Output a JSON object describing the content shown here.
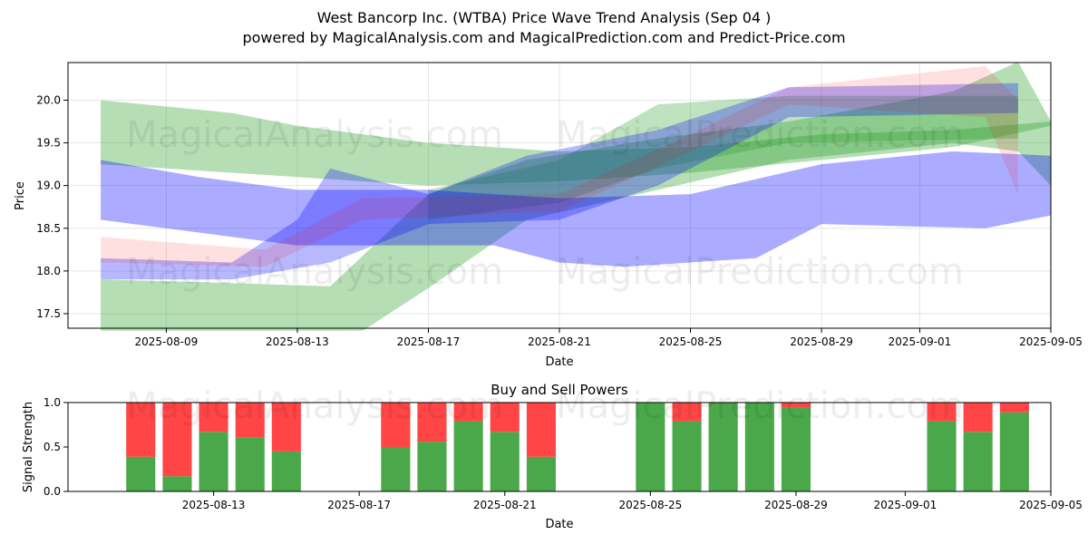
{
  "title_line1": "West Bancorp Inc. (WTBA) Price Wave Trend Analysis (Sep 04 )",
  "title_line2": "powered by MagicalAnalysis.com and MagicalPrediction.com and Predict-Price.com",
  "watermark_left": "MagicalAnalysis.com",
  "watermark_right": "MagicalPrediction.com",
  "colors": {
    "green_band": "#2ca02c",
    "blue_band": "#0000ff",
    "red_band": "#ff0000",
    "buy_bar": "#4aa84a",
    "sell_bar": "#ff4545"
  },
  "chart_data": [
    {
      "type": "area",
      "title": "",
      "xlabel": "Date",
      "ylabel": "Price",
      "x_range": [
        "2025-08-06",
        "2025-09-05"
      ],
      "ylim": [
        17.33,
        20.44
      ],
      "x_ticks": [
        "2025-08-09",
        "2025-08-13",
        "2025-08-17",
        "2025-08-21",
        "2025-08-25",
        "2025-08-29",
        "2025-09-01",
        "2025-09-05"
      ],
      "y_ticks": [
        17.5,
        18.0,
        18.5,
        19.0,
        19.5,
        20.0
      ],
      "grid": true,
      "bands": [
        {
          "color": "green",
          "opacity": 0.35,
          "upper": [
            [
              "2025-08-07",
              20.0
            ],
            [
              "2025-08-11",
              19.85
            ],
            [
              "2025-08-13",
              19.7
            ],
            [
              "2025-08-17",
              19.5
            ],
            [
              "2025-08-21",
              19.4
            ],
            [
              "2025-08-25",
              19.45
            ],
            [
              "2025-08-29",
              19.6
            ],
            [
              "2025-09-02",
              19.65
            ],
            [
              "2025-09-05",
              19.75
            ]
          ],
          "lower": [
            [
              "2025-09-05",
              19.7
            ],
            [
              "2025-09-02",
              19.45
            ],
            [
              "2025-08-29",
              19.3
            ],
            [
              "2025-08-25",
              19.15
            ],
            [
              "2025-08-21",
              19.05
            ],
            [
              "2025-08-17",
              19.0
            ],
            [
              "2025-08-13",
              19.1
            ],
            [
              "2025-08-11",
              19.15
            ],
            [
              "2025-08-07",
              19.25
            ]
          ]
        },
        {
          "color": "green",
          "opacity": 0.35,
          "upper": [
            [
              "2025-08-07",
              17.9
            ],
            [
              "2025-08-10",
              17.87
            ],
            [
              "2025-08-14",
              17.82
            ],
            [
              "2025-08-17",
              18.9
            ],
            [
              "2025-08-20",
              19.3
            ],
            [
              "2025-08-24",
              19.55
            ],
            [
              "2025-08-28",
              19.75
            ],
            [
              "2025-09-02",
              20.1
            ],
            [
              "2025-09-04",
              20.45
            ],
            [
              "2025-09-05",
              19.75
            ]
          ],
          "lower": [
            [
              "2025-09-05",
              19.0
            ],
            [
              "2025-09-04",
              19.4
            ],
            [
              "2025-09-02",
              19.5
            ],
            [
              "2025-08-28",
              19.3
            ],
            [
              "2025-08-24",
              18.95
            ],
            [
              "2025-08-20",
              18.6
            ],
            [
              "2025-08-17",
              17.8
            ],
            [
              "2025-08-15",
              17.3
            ],
            [
              "2025-08-07",
              17.3
            ]
          ]
        },
        {
          "color": "green",
          "opacity": 0.3,
          "upper": [
            [
              "2025-08-17",
              18.95
            ],
            [
              "2025-08-21",
              19.3
            ],
            [
              "2025-08-24",
              19.95
            ],
            [
              "2025-08-28",
              20.05
            ],
            [
              "2025-09-04",
              20.05
            ]
          ],
          "lower": [
            [
              "2025-09-04",
              19.55
            ],
            [
              "2025-08-28",
              19.5
            ],
            [
              "2025-08-24",
              19.2
            ],
            [
              "2025-08-21",
              18.8
            ],
            [
              "2025-08-17",
              18.6
            ]
          ]
        },
        {
          "color": "blue",
          "opacity": 0.33,
          "upper": [
            [
              "2025-08-07",
              19.3
            ],
            [
              "2025-08-10",
              19.1
            ],
            [
              "2025-08-13",
              18.95
            ],
            [
              "2025-08-17",
              18.95
            ],
            [
              "2025-08-21",
              18.85
            ],
            [
              "2025-08-25",
              18.9
            ],
            [
              "2025-08-29",
              19.25
            ],
            [
              "2025-09-02",
              19.4
            ],
            [
              "2025-09-05",
              19.35
            ]
          ],
          "lower": [
            [
              "2025-09-05",
              18.65
            ],
            [
              "2025-09-03",
              18.5
            ],
            [
              "2025-08-29",
              18.55
            ],
            [
              "2025-08-27",
              18.15
            ],
            [
              "2025-08-23",
              18.05
            ],
            [
              "2025-08-21",
              18.1
            ],
            [
              "2025-08-19",
              18.3
            ],
            [
              "2025-08-15",
              18.3
            ],
            [
              "2025-08-13",
              18.3
            ],
            [
              "2025-08-10",
              18.45
            ],
            [
              "2025-08-07",
              18.6
            ]
          ]
        },
        {
          "color": "blue",
          "opacity": 0.28,
          "upper": [
            [
              "2025-08-07",
              18.15
            ],
            [
              "2025-08-11",
              18.1
            ],
            [
              "2025-08-13",
              18.6
            ],
            [
              "2025-08-14",
              19.2
            ],
            [
              "2025-08-17",
              18.9
            ],
            [
              "2025-08-20",
              19.35
            ],
            [
              "2025-08-24",
              19.65
            ],
            [
              "2025-08-28",
              20.15
            ],
            [
              "2025-09-04",
              20.2
            ]
          ],
          "lower": [
            [
              "2025-09-04",
              19.85
            ],
            [
              "2025-08-28",
              19.8
            ],
            [
              "2025-08-24",
              19.0
            ],
            [
              "2025-08-21",
              18.6
            ],
            [
              "2025-08-17",
              18.55
            ],
            [
              "2025-08-14",
              18.1
            ],
            [
              "2025-08-11",
              17.9
            ],
            [
              "2025-08-07",
              17.9
            ]
          ]
        },
        {
          "color": "red",
          "opacity": 0.12,
          "upper": [
            [
              "2025-08-07",
              18.4
            ],
            [
              "2025-08-12",
              18.25
            ],
            [
              "2025-08-15",
              18.85
            ],
            [
              "2025-08-21",
              18.9
            ],
            [
              "2025-08-25",
              19.6
            ],
            [
              "2025-08-28",
              20.15
            ],
            [
              "2025-09-03",
              20.4
            ],
            [
              "2025-09-04",
              20.0
            ]
          ],
          "lower": [
            [
              "2025-09-04",
              18.9
            ],
            [
              "2025-09-03",
              19.8
            ],
            [
              "2025-08-28",
              19.95
            ],
            [
              "2025-08-25",
              19.4
            ],
            [
              "2025-08-21",
              18.7
            ],
            [
              "2025-08-15",
              18.6
            ],
            [
              "2025-08-12",
              18.05
            ],
            [
              "2025-08-07",
              18.1
            ]
          ]
        }
      ]
    },
    {
      "type": "bar",
      "title": "Buy and Sell Powers",
      "xlabel": "Date",
      "ylabel": "Signal Strength",
      "x_range": [
        "2025-08-09",
        "2025-09-05"
      ],
      "ylim": [
        0,
        1.0
      ],
      "x_ticks": [
        "2025-08-13",
        "2025-08-17",
        "2025-08-21",
        "2025-08-25",
        "2025-08-29",
        "2025-09-01",
        "2025-09-05"
      ],
      "y_ticks": [
        0.0,
        0.5,
        1.0
      ],
      "series": [
        {
          "name": "Buy",
          "color": "green"
        },
        {
          "name": "Sell",
          "color": "red"
        }
      ],
      "bars": [
        {
          "date": "2025-08-11",
          "buy": 0.39
        },
        {
          "date": "2025-08-12",
          "buy": 0.17
        },
        {
          "date": "2025-08-13",
          "buy": 0.67
        },
        {
          "date": "2025-08-14",
          "buy": 0.61
        },
        {
          "date": "2025-08-15",
          "buy": 0.45
        },
        {
          "date": "2025-08-18",
          "buy": 0.5
        },
        {
          "date": "2025-08-19",
          "buy": 0.56
        },
        {
          "date": "2025-08-20",
          "buy": 0.79
        },
        {
          "date": "2025-08-21",
          "buy": 0.67
        },
        {
          "date": "2025-08-22",
          "buy": 0.39
        },
        {
          "date": "2025-08-25",
          "buy": 1.0
        },
        {
          "date": "2025-08-26",
          "buy": 0.79
        },
        {
          "date": "2025-08-27",
          "buy": 1.0
        },
        {
          "date": "2025-08-28",
          "buy": 1.0
        },
        {
          "date": "2025-08-29",
          "buy": 0.94
        },
        {
          "date": "2025-09-02",
          "buy": 0.79
        },
        {
          "date": "2025-09-03",
          "buy": 0.67
        },
        {
          "date": "2025-09-04",
          "buy": 0.89
        }
      ]
    }
  ]
}
